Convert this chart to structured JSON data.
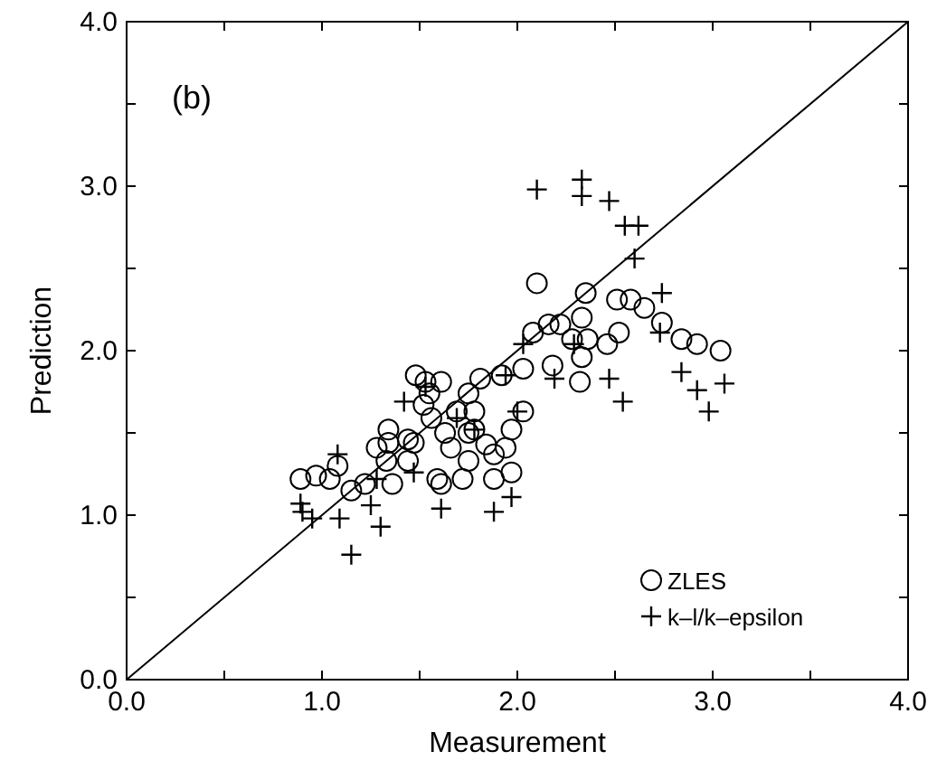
{
  "chart_data": {
    "type": "scatter",
    "xlabel": "Measurement",
    "ylabel": "Prediction",
    "annotations": [
      "(b)"
    ],
    "xlim": [
      0,
      4
    ],
    "ylim": [
      0,
      4
    ],
    "xticks": [
      {
        "value": 0,
        "label": "0.0"
      },
      {
        "value": 0.5,
        "label": null
      },
      {
        "value": 1,
        "label": "1.0"
      },
      {
        "value": 1.5,
        "label": null
      },
      {
        "value": 2,
        "label": "2.0"
      },
      {
        "value": 2.5,
        "label": null
      },
      {
        "value": 3,
        "label": "3.0"
      },
      {
        "value": 3.5,
        "label": null
      },
      {
        "value": 4,
        "label": "4.0"
      }
    ],
    "yticks": [
      {
        "value": 0,
        "label": "0.0"
      },
      {
        "value": 0.5,
        "label": null
      },
      {
        "value": 1,
        "label": "1.0"
      },
      {
        "value": 1.5,
        "label": null
      },
      {
        "value": 2,
        "label": "2.0"
      },
      {
        "value": 2.5,
        "label": null
      },
      {
        "value": 3,
        "label": "3.0"
      },
      {
        "value": 3.5,
        "label": null
      },
      {
        "value": 4,
        "label": "4.0"
      }
    ],
    "grid": false,
    "legend": "bottom right",
    "series": [
      {
        "name": "ZLES",
        "color": "#000000",
        "marker": "circle",
        "x": [
          0.89,
          0.97,
          1.04,
          1.15,
          1.08,
          1.22,
          1.28,
          1.34,
          1.33,
          1.36,
          1.44,
          1.47,
          1.48,
          1.53,
          1.61,
          1.52,
          1.56,
          1.59,
          1.61,
          1.66,
          1.72,
          1.75,
          1.78,
          1.81,
          1.78,
          1.88,
          1.88,
          1.94,
          1.97,
          1.97,
          2.03,
          1.92,
          2.03,
          2.08,
          2.1,
          2.16,
          2.22,
          2.28,
          2.33,
          2.35,
          2.36,
          2.52,
          2.51,
          2.58,
          2.65,
          2.74,
          2.84,
          2.92,
          3.04,
          2.18,
          2.32,
          2.33,
          2.46,
          1.44,
          1.69,
          1.55,
          1.75,
          1.63,
          1.34,
          1.75,
          1.84
        ],
        "values": [
          1.22,
          1.24,
          1.22,
          1.15,
          1.3,
          1.19,
          1.41,
          1.44,
          1.33,
          1.19,
          1.33,
          1.44,
          1.85,
          1.81,
          1.81,
          1.67,
          1.59,
          1.22,
          1.19,
          1.41,
          1.22,
          1.33,
          1.52,
          1.83,
          1.63,
          1.37,
          1.22,
          1.41,
          1.26,
          1.52,
          1.63,
          1.85,
          1.89,
          2.11,
          2.41,
          2.16,
          2.16,
          2.07,
          2.2,
          2.35,
          2.07,
          2.11,
          2.31,
          2.31,
          2.26,
          2.17,
          2.07,
          2.04,
          2.0,
          1.91,
          1.81,
          1.96,
          2.04,
          1.46,
          1.63,
          1.74,
          1.74,
          1.5,
          1.52,
          1.5,
          1.43
        ]
      },
      {
        "name": "k–l/k–epsilon",
        "color": "#000000",
        "marker": "cross",
        "x": [
          0.89,
          0.9,
          0.95,
          1.08,
          1.09,
          1.15,
          1.25,
          1.3,
          1.28,
          1.42,
          1.47,
          1.61,
          1.88,
          1.97,
          2.03,
          2.1,
          2.19,
          2.33,
          2.33,
          2.47,
          2.55,
          2.62,
          2.6,
          2.74,
          2.47,
          2.54,
          2.84,
          2.92,
          2.98,
          3.06,
          2.29,
          1.69,
          1.78,
          1.94,
          1.53,
          2.73,
          2.0
        ],
        "values": [
          1.07,
          1.02,
          0.98,
          1.37,
          0.98,
          0.76,
          1.06,
          0.93,
          1.22,
          1.69,
          1.26,
          1.04,
          1.02,
          1.11,
          2.04,
          2.98,
          1.83,
          3.04,
          2.94,
          2.91,
          2.76,
          2.76,
          2.56,
          2.35,
          1.83,
          1.69,
          1.87,
          1.76,
          1.63,
          1.8,
          2.04,
          1.59,
          1.52,
          1.85,
          1.78,
          2.11,
          1.63
        ]
      },
      {
        "type": "line",
        "color": "#000000",
        "marker": "none",
        "line_style": "solid",
        "x": [
          0,
          4
        ],
        "values": [
          0,
          4
        ]
      }
    ]
  }
}
